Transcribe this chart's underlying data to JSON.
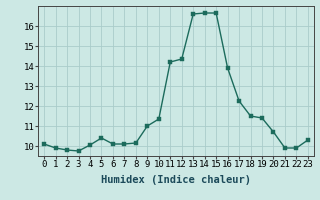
{
  "x": [
    0,
    1,
    2,
    3,
    4,
    5,
    6,
    7,
    8,
    9,
    10,
    11,
    12,
    13,
    14,
    15,
    16,
    17,
    18,
    19,
    20,
    21,
    22,
    23
  ],
  "y": [
    10.1,
    9.9,
    9.8,
    9.75,
    10.05,
    10.4,
    10.1,
    10.1,
    10.15,
    11.0,
    11.35,
    14.2,
    14.35,
    16.6,
    16.65,
    16.65,
    13.9,
    12.25,
    11.5,
    11.4,
    10.7,
    9.9,
    9.9,
    10.3
  ],
  "line_color": "#1c6b5c",
  "marker_color": "#1c6b5c",
  "bg_color": "#cce8e4",
  "grid_color": "#aaccca",
  "xlabel": "Humidex (Indice chaleur)",
  "ylim": [
    9.5,
    17.0
  ],
  "xlim": [
    -0.5,
    23.5
  ],
  "yticks": [
    10,
    11,
    12,
    13,
    14,
    15,
    16
  ],
  "xticks": [
    0,
    1,
    2,
    3,
    4,
    5,
    6,
    7,
    8,
    9,
    10,
    11,
    12,
    13,
    14,
    15,
    16,
    17,
    18,
    19,
    20,
    21,
    22,
    23
  ],
  "xlabel_fontsize": 7.5,
  "tick_fontsize": 6.5,
  "linewidth": 1.0,
  "markersize": 2.5
}
